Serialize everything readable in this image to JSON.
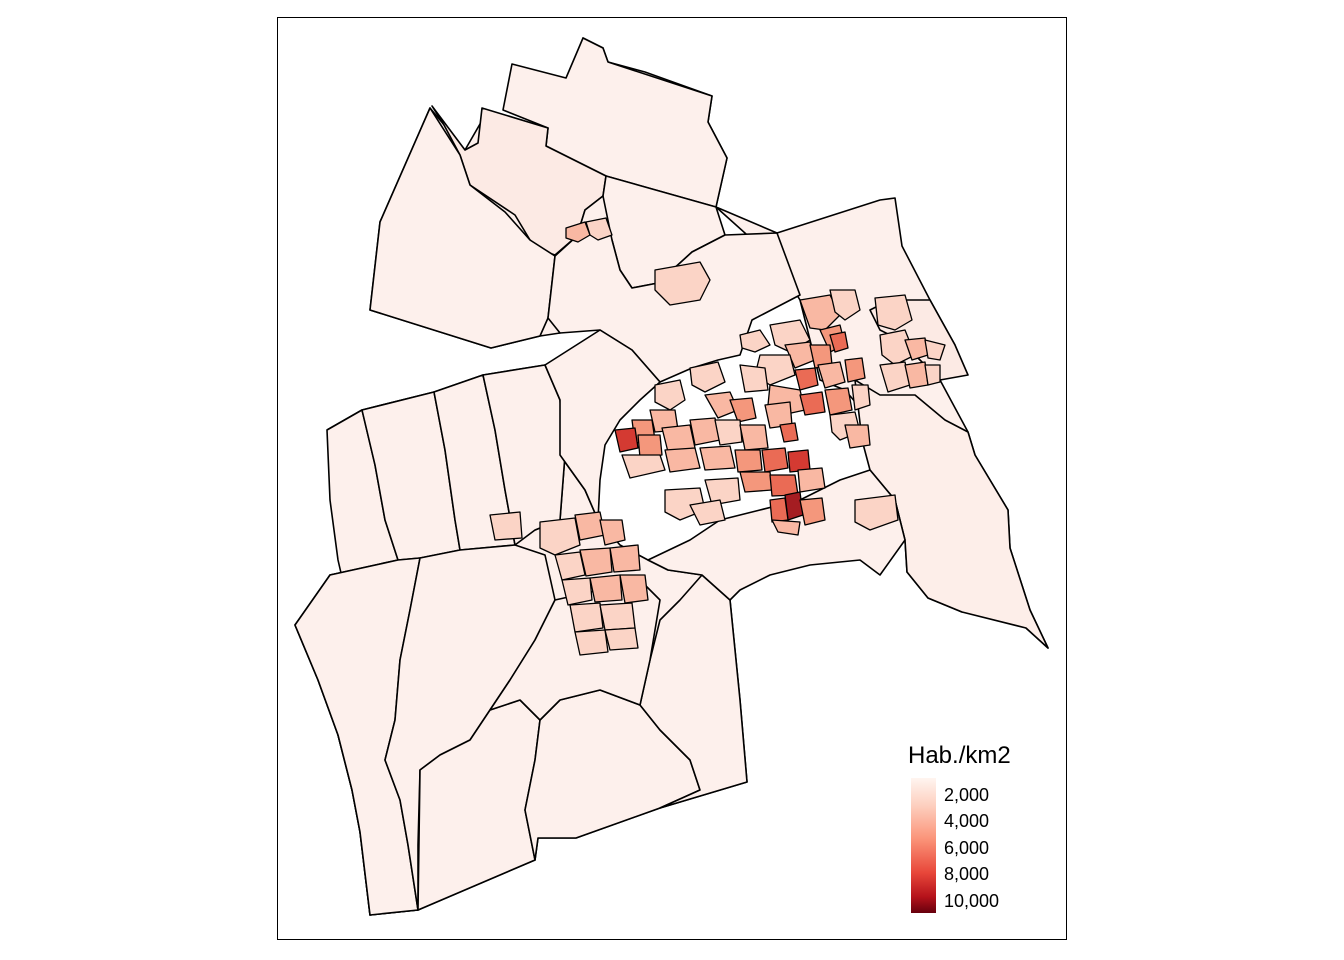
{
  "legend": {
    "title": "Hab./km2",
    "labels": [
      "2,000",
      "4,000",
      "6,000",
      "8,000",
      "10,000"
    ],
    "gradient": [
      "#fff5f0",
      "#fdd0c0",
      "#fb9479",
      "#e8473a",
      "#b5121b",
      "#67000d"
    ]
  },
  "colors": {
    "base_fill": "#fdf0ec",
    "border": "#000000",
    "frame": "#000000",
    "density_levels": [
      "#fdeae3",
      "#fbd4c6",
      "#f9b8a3",
      "#f4977c",
      "#ea6b55",
      "#d43a32",
      "#a51d22"
    ]
  }
}
